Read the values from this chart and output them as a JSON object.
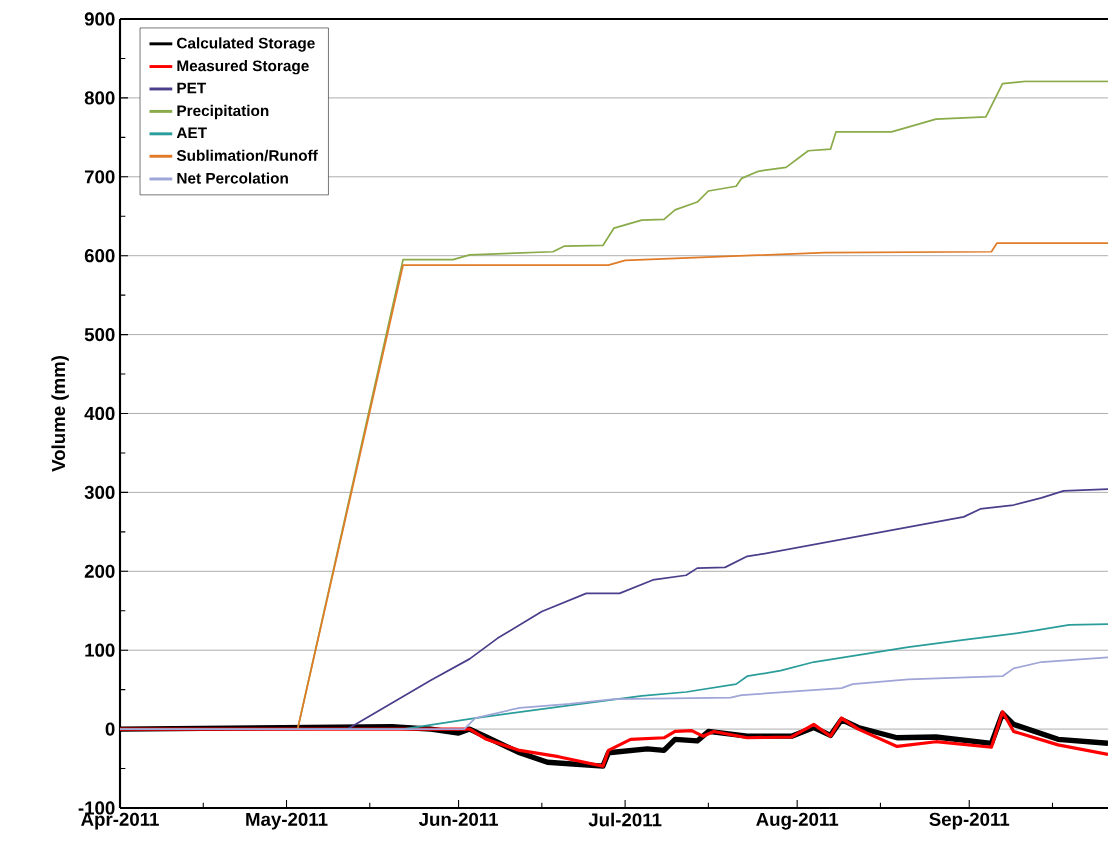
{
  "chart_data": {
    "type": "line",
    "ylabel": "Volume (mm)",
    "xlim": [
      "2011-04-01",
      "2011-09-26"
    ],
    "xticks": [
      {
        "value": "2011-04-01",
        "label": "Apr-2011"
      },
      {
        "value": "2011-04-16",
        "label": null
      },
      {
        "value": "2011-05-01",
        "label": "May-2011"
      },
      {
        "value": "2011-05-16",
        "label": null
      },
      {
        "value": "2011-06-01",
        "label": "Jun-2011"
      },
      {
        "value": "2011-06-16",
        "label": null
      },
      {
        "value": "2011-07-01",
        "label": "Jul-2011"
      },
      {
        "value": "2011-07-16",
        "label": null
      },
      {
        "value": "2011-08-01",
        "label": "Aug-2011"
      },
      {
        "value": "2011-08-16",
        "label": null
      },
      {
        "value": "2011-09-01",
        "label": "Sep-2011"
      },
      {
        "value": "2011-09-16",
        "label": null
      }
    ],
    "ylim": [
      -100,
      900
    ],
    "yticks": [
      -100,
      {
        "value": -50,
        "label": null
      },
      0,
      {
        "value": 50,
        "label": null
      },
      100,
      {
        "value": 150,
        "label": null
      },
      200,
      {
        "value": 250,
        "label": null
      },
      300,
      {
        "value": 350,
        "label": null
      },
      400,
      {
        "value": 450,
        "label": null
      },
      500,
      {
        "value": 550,
        "label": null
      },
      600,
      {
        "value": 650,
        "label": null
      },
      700,
      {
        "value": 750,
        "label": null
      },
      800,
      {
        "value": 850,
        "label": null
      },
      900
    ],
    "grid": "y",
    "legend": "top left",
    "marker": "none",
    "line_style": "solid",
    "series": [
      {
        "name": "Calculated Storage",
        "color": "#000000",
        "x": [
          "2011-04-01",
          "2011-05-20",
          "2011-05-27",
          "2011-06-01",
          "2011-06-03",
          "2011-06-06",
          "2011-06-12",
          "2011-06-17",
          "2011-06-27",
          "2011-06-28",
          "2011-07-05",
          "2011-07-08",
          "2011-07-10",
          "2011-07-14",
          "2011-07-16",
          "2011-07-23",
          "2011-07-31",
          "2011-08-04",
          "2011-08-07",
          "2011-08-09",
          "2011-08-12",
          "2011-08-19",
          "2011-08-26",
          "2011-09-05",
          "2011-09-07",
          "2011-09-09",
          "2011-09-17",
          "2011-09-26"
        ],
        "values": [
          0,
          3,
          0,
          -5,
          0,
          -10,
          -30,
          -42,
          -47,
          -30,
          -25,
          -27,
          -13,
          -15,
          -3,
          -9,
          -9,
          2,
          -8,
          12,
          2,
          -11,
          -10,
          -18,
          20,
          6,
          -13,
          -18
        ]
      },
      {
        "name": "Measured Storage",
        "color": "#ff0000",
        "x": [
          "2011-04-01",
          "2011-06-03",
          "2011-06-06",
          "2011-06-12",
          "2011-06-19",
          "2011-06-27",
          "2011-06-28",
          "2011-07-02",
          "2011-07-08",
          "2011-07-10",
          "2011-07-13",
          "2011-07-15",
          "2011-07-17",
          "2011-07-23",
          "2011-07-31",
          "2011-08-04",
          "2011-08-07",
          "2011-08-09",
          "2011-08-12",
          "2011-08-19",
          "2011-08-26",
          "2011-09-05",
          "2011-09-07",
          "2011-09-09",
          "2011-09-17",
          "2011-09-26"
        ],
        "values": [
          0,
          0,
          -13,
          -27,
          -35,
          -47,
          -27,
          -13,
          -11,
          -3,
          -2,
          -9,
          -3,
          -11,
          -10,
          6,
          -9,
          14,
          0,
          -22,
          -16,
          -23,
          22,
          -3,
          -20,
          -32
        ]
      },
      {
        "name": "PET",
        "color": "#4b3f8c",
        "x": [
          "2011-04-01",
          "2011-05-12",
          "2011-05-27",
          "2011-06-03",
          "2011-06-08",
          "2011-06-16",
          "2011-06-24",
          "2011-06-30",
          "2011-07-06",
          "2011-07-12",
          "2011-07-14",
          "2011-07-19",
          "2011-07-23",
          "2011-07-25",
          "2011-08-31",
          "2011-09-03",
          "2011-09-09",
          "2011-09-14",
          "2011-09-18",
          "2011-09-26"
        ],
        "values": [
          0,
          0,
          62,
          89,
          115,
          149,
          172,
          172,
          189,
          195,
          204,
          205,
          219,
          221,
          269,
          279,
          284,
          293,
          302,
          304
        ]
      },
      {
        "name": "Precipitation",
        "color": "#8aab4a",
        "x": [
          "2011-04-01",
          "2011-05-03",
          "2011-05-22",
          "2011-05-31",
          "2011-06-03",
          "2011-06-18",
          "2011-06-20",
          "2011-06-27",
          "2011-06-29",
          "2011-07-04",
          "2011-07-08",
          "2011-07-10",
          "2011-07-14",
          "2011-07-16",
          "2011-07-21",
          "2011-07-22",
          "2011-07-25",
          "2011-07-30",
          "2011-08-03",
          "2011-08-07",
          "2011-08-08",
          "2011-08-18",
          "2011-08-26",
          "2011-09-04",
          "2011-09-07",
          "2011-09-11",
          "2011-09-26"
        ],
        "values": [
          0,
          0,
          595,
          595,
          601,
          605,
          612,
          613,
          635,
          645,
          646,
          658,
          668,
          682,
          688,
          698,
          707,
          712,
          733,
          735,
          757,
          757,
          773,
          776,
          818,
          821,
          821
        ]
      },
      {
        "name": "AET",
        "color": "#2a9d9a",
        "x": [
          "2011-04-01",
          "2011-05-22",
          "2011-06-04",
          "2011-06-21",
          "2011-07-04",
          "2011-07-12",
          "2011-07-21",
          "2011-07-23",
          "2011-07-29",
          "2011-08-04",
          "2011-08-21",
          "2011-08-31",
          "2011-09-08",
          "2011-09-13",
          "2011-09-19",
          "2011-09-26"
        ],
        "values": [
          0,
          0,
          14,
          30,
          42,
          47,
          57,
          67,
          74,
          85,
          104,
          113,
          120,
          125,
          132,
          133
        ]
      },
      {
        "name": "Sublimation/Runoff",
        "color": "#e07b28",
        "x": [
          "2011-04-01",
          "2011-05-03",
          "2011-05-22",
          "2011-06-28",
          "2011-07-01",
          "2011-08-06",
          "2011-09-05",
          "2011-09-06",
          "2011-09-26"
        ],
        "values": [
          0,
          0,
          588,
          588,
          594,
          604,
          605,
          616,
          616
        ]
      },
      {
        "name": "Net Percolation",
        "color": "#9fa5d6",
        "x": [
          "2011-04-01",
          "2011-06-02",
          "2011-06-04",
          "2011-06-12",
          "2011-06-21",
          "2011-06-29",
          "2011-07-20",
          "2011-07-22",
          "2011-08-09",
          "2011-08-11",
          "2011-08-21",
          "2011-09-07",
          "2011-09-09",
          "2011-09-14",
          "2011-09-26"
        ],
        "values": [
          0,
          0,
          14,
          27,
          32,
          38,
          40,
          43,
          52,
          57,
          63,
          67,
          77,
          85,
          91
        ]
      }
    ]
  }
}
